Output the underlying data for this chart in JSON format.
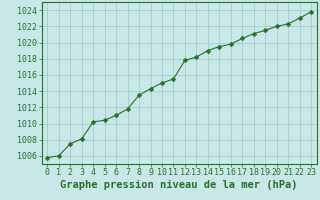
{
  "x": [
    0,
    1,
    2,
    3,
    4,
    5,
    6,
    7,
    8,
    9,
    10,
    11,
    12,
    13,
    14,
    15,
    16,
    17,
    18,
    19,
    20,
    21,
    22,
    23
  ],
  "y": [
    1005.8,
    1006.0,
    1007.5,
    1008.1,
    1010.2,
    1010.4,
    1011.0,
    1011.8,
    1013.5,
    1014.3,
    1015.0,
    1015.5,
    1017.8,
    1018.2,
    1019.0,
    1019.5,
    1019.8,
    1020.5,
    1021.1,
    1021.5,
    1022.0,
    1022.3,
    1023.0,
    1023.8
  ],
  "line_color": "#2d6e2d",
  "marker": "D",
  "marker_size": 2.5,
  "bg_color": "#c8e8e8",
  "grid_color": "#a0c8c8",
  "xlabel": "Graphe pression niveau de la mer (hPa)",
  "xlabel_fontsize": 7.5,
  "ylim": [
    1005,
    1025
  ],
  "xlim": [
    -0.5,
    23.5
  ],
  "yticks": [
    1006,
    1008,
    1010,
    1012,
    1014,
    1016,
    1018,
    1020,
    1022,
    1024
  ],
  "xticks": [
    0,
    1,
    2,
    3,
    4,
    5,
    6,
    7,
    8,
    9,
    10,
    11,
    12,
    13,
    14,
    15,
    16,
    17,
    18,
    19,
    20,
    21,
    22,
    23
  ],
  "tick_fontsize": 6,
  "border_color": "#2d6e2d",
  "linewidth": 0.8
}
